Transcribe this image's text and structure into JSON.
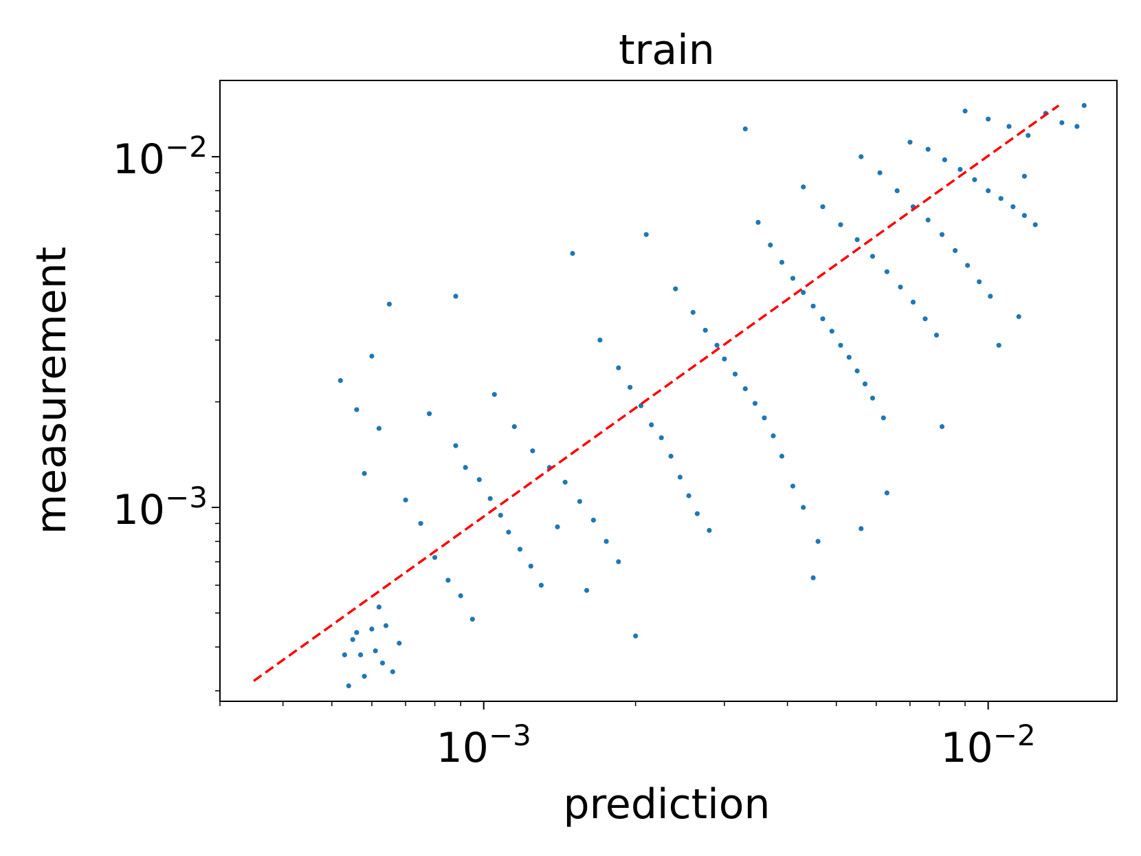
{
  "chart_data": {
    "type": "scatter",
    "title": "train",
    "xlabel": "prediction",
    "ylabel": "measurement",
    "x_scale": "log",
    "y_scale": "log",
    "xlim": [
      0.0003,
      0.018
    ],
    "ylim": [
      0.00028,
      0.0165
    ],
    "x_ticks": [
      {
        "value": 0.001,
        "base": "10",
        "exp": "−3"
      },
      {
        "value": 0.01,
        "base": "10",
        "exp": "−2"
      }
    ],
    "y_ticks": [
      {
        "value": 0.001,
        "base": "10",
        "exp": "−3"
      },
      {
        "value": 0.01,
        "base": "10",
        "exp": "−2"
      }
    ],
    "grid": false,
    "legend": "none",
    "colors": {
      "points": "#1f77b4",
      "reference": "#ff0000"
    },
    "reference_line": {
      "style": "dashed",
      "from": [
        0.00035,
        0.00032
      ],
      "to": [
        0.0138,
        0.014
      ]
    },
    "series": [
      {
        "points": [
          [
            0.00052,
            0.0023
          ],
          [
            0.00053,
            0.00038
          ],
          [
            0.00054,
            0.00031
          ],
          [
            0.00055,
            0.00042
          ],
          [
            0.00056,
            0.00044
          ],
          [
            0.00057,
            0.00038
          ],
          [
            0.00058,
            0.00033
          ],
          [
            0.0006,
            0.00045
          ],
          [
            0.00061,
            0.00039
          ],
          [
            0.00062,
            0.00052
          ],
          [
            0.00063,
            0.00036
          ],
          [
            0.00064,
            0.00046
          ],
          [
            0.00066,
            0.00034
          ],
          [
            0.00068,
            0.00041
          ],
          [
            0.00065,
            0.0038
          ],
          [
            0.00056,
            0.0019
          ],
          [
            0.0006,
            0.0027
          ],
          [
            0.00058,
            0.00125
          ],
          [
            0.00062,
            0.00168
          ],
          [
            0.0007,
            0.00105
          ],
          [
            0.00075,
            0.0009
          ],
          [
            0.0008,
            0.00072
          ],
          [
            0.00085,
            0.00062
          ],
          [
            0.0009,
            0.00056
          ],
          [
            0.00095,
            0.00048
          ],
          [
            0.00078,
            0.00185
          ],
          [
            0.00088,
            0.0015
          ],
          [
            0.00092,
            0.0013
          ],
          [
            0.00098,
            0.0012
          ],
          [
            0.00103,
            0.00106
          ],
          [
            0.00108,
            0.00095
          ],
          [
            0.00112,
            0.00085
          ],
          [
            0.00118,
            0.00076
          ],
          [
            0.00124,
            0.00068
          ],
          [
            0.0013,
            0.0006
          ],
          [
            0.00088,
            0.004
          ],
          [
            0.00105,
            0.0021
          ],
          [
            0.00115,
            0.0017
          ],
          [
            0.00125,
            0.00145
          ],
          [
            0.00135,
            0.0013
          ],
          [
            0.00145,
            0.00118
          ],
          [
            0.00155,
            0.00104
          ],
          [
            0.00165,
            0.00092
          ],
          [
            0.00175,
            0.0008
          ],
          [
            0.00185,
            0.0007
          ],
          [
            0.002,
            0.00043
          ],
          [
            0.0016,
            0.00058
          ],
          [
            0.0014,
            0.00088
          ],
          [
            0.0015,
            0.0053
          ],
          [
            0.0017,
            0.003
          ],
          [
            0.00185,
            0.0025
          ],
          [
            0.00195,
            0.0022
          ],
          [
            0.00205,
            0.00195
          ],
          [
            0.00215,
            0.00172
          ],
          [
            0.00225,
            0.00158
          ],
          [
            0.00235,
            0.0014
          ],
          [
            0.00245,
            0.00122
          ],
          [
            0.00255,
            0.00108
          ],
          [
            0.00265,
            0.00096
          ],
          [
            0.0028,
            0.00086
          ],
          [
            0.0021,
            0.006
          ],
          [
            0.0024,
            0.0042
          ],
          [
            0.0026,
            0.0036
          ],
          [
            0.00275,
            0.0032
          ],
          [
            0.0029,
            0.0029
          ],
          [
            0.003,
            0.00265
          ],
          [
            0.00315,
            0.0024
          ],
          [
            0.0033,
            0.00218
          ],
          [
            0.00345,
            0.00198
          ],
          [
            0.0036,
            0.0018
          ],
          [
            0.00375,
            0.0016
          ],
          [
            0.0039,
            0.0014
          ],
          [
            0.0041,
            0.00115
          ],
          [
            0.0043,
            0.001
          ],
          [
            0.0046,
            0.0008
          ],
          [
            0.0033,
            0.012
          ],
          [
            0.0035,
            0.0065
          ],
          [
            0.0037,
            0.0056
          ],
          [
            0.0039,
            0.005
          ],
          [
            0.0041,
            0.0045
          ],
          [
            0.0043,
            0.0041
          ],
          [
            0.0045,
            0.00375
          ],
          [
            0.0047,
            0.00345
          ],
          [
            0.0049,
            0.00318
          ],
          [
            0.0051,
            0.0029
          ],
          [
            0.0053,
            0.00268
          ],
          [
            0.0055,
            0.00245
          ],
          [
            0.0057,
            0.00225
          ],
          [
            0.0059,
            0.00205
          ],
          [
            0.0062,
            0.0018
          ],
          [
            0.0043,
            0.0082
          ],
          [
            0.0047,
            0.0072
          ],
          [
            0.0051,
            0.0064
          ],
          [
            0.0055,
            0.0058
          ],
          [
            0.0059,
            0.0052
          ],
          [
            0.0063,
            0.0047
          ],
          [
            0.0067,
            0.00425
          ],
          [
            0.0071,
            0.00385
          ],
          [
            0.0075,
            0.00345
          ],
          [
            0.0079,
            0.0031
          ],
          [
            0.0056,
            0.01
          ],
          [
            0.0061,
            0.009
          ],
          [
            0.0066,
            0.008
          ],
          [
            0.0071,
            0.0072
          ],
          [
            0.0076,
            0.0066
          ],
          [
            0.0081,
            0.006
          ],
          [
            0.0086,
            0.0054
          ],
          [
            0.0091,
            0.0049
          ],
          [
            0.0096,
            0.0044
          ],
          [
            0.0101,
            0.004
          ],
          [
            0.007,
            0.011
          ],
          [
            0.0076,
            0.0105
          ],
          [
            0.0082,
            0.0098
          ],
          [
            0.0088,
            0.0092
          ],
          [
            0.0094,
            0.0086
          ],
          [
            0.01,
            0.008
          ],
          [
            0.0106,
            0.0076
          ],
          [
            0.0112,
            0.0072
          ],
          [
            0.0118,
            0.0068
          ],
          [
            0.0124,
            0.0064
          ],
          [
            0.009,
            0.0135
          ],
          [
            0.01,
            0.0128
          ],
          [
            0.011,
            0.0122
          ],
          [
            0.012,
            0.0115
          ],
          [
            0.013,
            0.0133
          ],
          [
            0.0155,
            0.014
          ],
          [
            0.014,
            0.0125
          ],
          [
            0.015,
            0.0122
          ],
          [
            0.0118,
            0.0088
          ],
          [
            0.0115,
            0.0035
          ],
          [
            0.0105,
            0.0029
          ],
          [
            0.0081,
            0.0017
          ],
          [
            0.0063,
            0.0011
          ],
          [
            0.0056,
            0.00087
          ],
          [
            0.0045,
            0.00063
          ]
        ]
      }
    ]
  }
}
